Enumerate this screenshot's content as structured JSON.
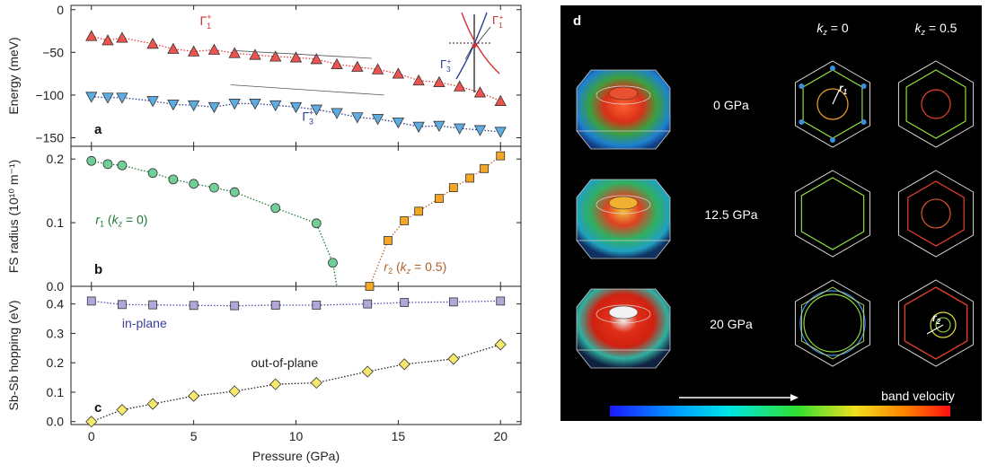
{
  "chart_data": [
    {
      "type": "scatter",
      "panel_label": "a",
      "ylabel": "Energy (meV)",
      "xlim": [
        -1,
        21
      ],
      "ylim": [
        -160,
        5
      ],
      "yticks": [
        0,
        -50,
        -100,
        -150
      ],
      "series": [
        {
          "name": "Γ1+",
          "marker": "triangle-up",
          "color": "#ef5350",
          "x": [
            0,
            0.8,
            1.5,
            3,
            4,
            5,
            6,
            7,
            8,
            9,
            10,
            11,
            12,
            13,
            14,
            15,
            16,
            17,
            18,
            19,
            20
          ],
          "y": [
            -31,
            -36,
            -33,
            -40,
            -46,
            -49,
            -47,
            -51,
            -53,
            -55,
            -56,
            -58,
            -64,
            -67,
            -70,
            -75,
            -83,
            -85,
            -90,
            -97,
            -107
          ]
        },
        {
          "name": "Γ3+",
          "marker": "triangle-down",
          "color": "#5dade2",
          "x": [
            0,
            0.8,
            1.5,
            3,
            4,
            5,
            6,
            7,
            8,
            9,
            10,
            11,
            12,
            13,
            14,
            15,
            16,
            17,
            18,
            19,
            20
          ],
          "y": [
            -102,
            -103,
            -103,
            -107,
            -111,
            -112,
            -114,
            -110,
            -110,
            -112,
            -114,
            -117,
            -121,
            -126,
            -128,
            -132,
            -137,
            -136,
            -139,
            -141,
            -143
          ]
        }
      ],
      "labels": {
        "upper": "Γ1+",
        "lower": "Γ3+",
        "inset_upper": "Γ1+",
        "inset_lower": "Γ3+"
      }
    },
    {
      "type": "scatter",
      "panel_label": "b",
      "ylabel": "FS radius (10¹⁰ m⁻¹)",
      "xlim": [
        -1,
        21
      ],
      "ylim": [
        0,
        0.22
      ],
      "yticks": [
        0.0,
        0.1,
        0.2
      ],
      "series": [
        {
          "name": "r1 (kz = 0)",
          "marker": "circle",
          "color": "#6fcf97",
          "x": [
            0,
            0.8,
            1.5,
            3,
            4,
            5,
            6,
            7,
            9,
            11,
            11.8
          ],
          "y": [
            0.197,
            0.192,
            0.19,
            0.178,
            0.168,
            0.161,
            0.155,
            0.148,
            0.123,
            0.099,
            0.037
          ]
        },
        {
          "name": "r2 (kz = 0.5)",
          "marker": "square",
          "color": "#f5a623",
          "x": [
            13.6,
            14.5,
            15.3,
            16,
            17,
            17.7,
            18.5,
            19.2,
            20
          ],
          "y": [
            0.0,
            0.072,
            0.103,
            0.118,
            0.138,
            0.155,
            0.17,
            0.185,
            0.205
          ]
        }
      ],
      "labels": {
        "r1": "r1 (kz = 0)",
        "r2": "r2 (kz = 0.5)"
      }
    },
    {
      "type": "scatter",
      "panel_label": "c",
      "xlabel": "Pressure (GPa)",
      "ylabel": "Sb-Sb hopping (eV)",
      "xlim": [
        -1,
        21
      ],
      "ylim": [
        -0.01,
        0.46
      ],
      "xticks": [
        0,
        5,
        10,
        15,
        20
      ],
      "yticks": [
        0.0,
        0.1,
        0.2,
        0.3,
        0.4
      ],
      "series": [
        {
          "name": "in-plane",
          "marker": "square",
          "color": "#b3a7d9",
          "x": [
            0,
            1.5,
            3,
            5,
            7,
            9,
            11,
            13.5,
            15.3,
            17.7,
            20
          ],
          "y": [
            0.41,
            0.398,
            0.397,
            0.395,
            0.394,
            0.396,
            0.396,
            0.4,
            0.405,
            0.407,
            0.41
          ]
        },
        {
          "name": "out-of-plane",
          "marker": "diamond",
          "color": "#f7e96b",
          "x": [
            0,
            1.5,
            3,
            5,
            7,
            9,
            11,
            13.5,
            15.3,
            17.7,
            20
          ],
          "y": [
            0.0,
            0.04,
            0.06,
            0.087,
            0.103,
            0.127,
            0.132,
            0.17,
            0.195,
            0.213,
            0.262
          ]
        }
      ],
      "labels": {
        "in_plane": "in-plane",
        "out_of_plane": "out-of-plane"
      }
    }
  ],
  "panel_d": {
    "label": "d",
    "col_headers": [
      "kz = 0",
      "kz = 0.5"
    ],
    "rows": [
      "0 GPa",
      "12.5 GPa",
      "20 GPa"
    ],
    "r1_label": "r1",
    "r2_label": "r2",
    "colorbar_label": "band velocity",
    "colors": {
      "background": "#000000",
      "contour_blue": "#3b8fe0",
      "contour_green": "#8fdc3a",
      "contour_red": "#e8412a",
      "contour_orange": "#f0a020"
    }
  }
}
